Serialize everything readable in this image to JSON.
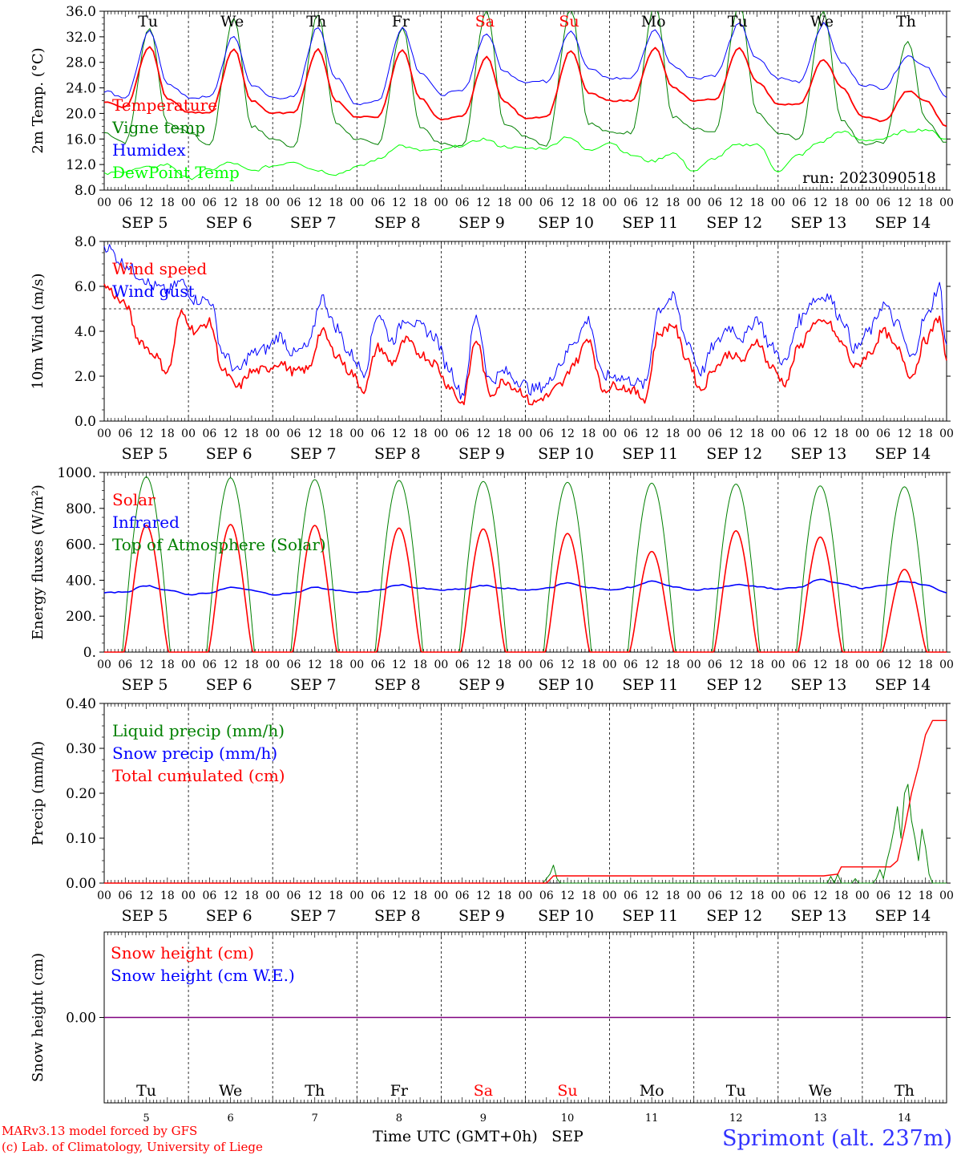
{
  "x_axis": {
    "hour_labels": [
      "00",
      "06",
      "12",
      "18"
    ],
    "end_label": "00",
    "date_labels": [
      "SEP  5",
      "SEP  6",
      "SEP  7",
      "SEP  8",
      "SEP  9",
      "SEP 10",
      "SEP 11",
      "SEP 12",
      "SEP 13",
      "SEP 14"
    ],
    "bottom_day_numbers": [
      "5",
      "6",
      "7",
      "8",
      "9",
      "10",
      "11",
      "12",
      "13",
      "14"
    ],
    "bottom_label": "Time UTC (GMT+0h)",
    "bottom_month": "SEP"
  },
  "day_names": [
    {
      "label": "Tu",
      "weekend": false
    },
    {
      "label": "We",
      "weekend": false
    },
    {
      "label": "Th",
      "weekend": false
    },
    {
      "label": "Fr",
      "weekend": false
    },
    {
      "label": "Sa",
      "weekend": true
    },
    {
      "label": "Su",
      "weekend": true
    },
    {
      "label": "Mo",
      "weekend": false
    },
    {
      "label": "Tu",
      "weekend": false
    },
    {
      "label": "We",
      "weekend": false
    },
    {
      "label": "Th",
      "weekend": false
    }
  ],
  "colors": {
    "red": "#ff0000",
    "green": "#008000",
    "blue": "#0000ff",
    "lightgreen": "#00ff00",
    "purple": "#800080",
    "weekend": "#ff0000"
  },
  "footer": {
    "credit_line1": "MARv3.13 model forced by GFS",
    "credit_line2": "(c) Lab. of Climatology, University of Liege",
    "station": "Sprimont (alt. 237m)"
  },
  "chart_data": [
    {
      "type": "line",
      "ylabel": "2m Temp. (°C)",
      "ylim": [
        8,
        36
      ],
      "yticks": [
        "8.0",
        "12.0",
        "16.0",
        "20.0",
        "24.0",
        "28.0",
        "32.0",
        "36.0"
      ],
      "annotation": "run: 2023090518",
      "x_unit": "hours since 2023-09-05 00 UTC",
      "series": [
        {
          "name": "Temperature",
          "color": "red",
          "width": 1.8,
          "x": [
            0,
            6,
            13,
            18,
            24,
            30,
            37,
            42,
            48,
            54,
            61,
            66,
            72,
            78,
            85,
            90,
            96,
            102,
            109,
            114,
            120,
            126,
            133,
            138,
            144,
            150,
            157,
            162,
            168,
            174,
            181,
            186,
            192,
            198,
            205,
            210,
            216,
            222,
            229,
            234,
            240
          ],
          "y": [
            21.8,
            21.0,
            30.5,
            22.4,
            20.2,
            20.0,
            30.0,
            22.0,
            20.0,
            20.2,
            30.0,
            22.0,
            19.4,
            19.5,
            30.0,
            22.4,
            19.0,
            19.5,
            28.8,
            21.8,
            19.3,
            19.5,
            29.8,
            23.2,
            22.0,
            22.0,
            30.2,
            24.0,
            22.0,
            22.2,
            30.2,
            25.0,
            21.5,
            21.4,
            28.4,
            24.2,
            19.5,
            18.8,
            23.5,
            22.0,
            18.0
          ]
        },
        {
          "name": "Vigne temp",
          "color": "green",
          "width": 1,
          "x": [
            0,
            6,
            13,
            18,
            24,
            30,
            37,
            42,
            48,
            54,
            61,
            66,
            72,
            78,
            85,
            90,
            96,
            102,
            109,
            114,
            120,
            126,
            133,
            138,
            144,
            150,
            157,
            162,
            168,
            174,
            181,
            186,
            192,
            198,
            205,
            210,
            216,
            222,
            229,
            234,
            240
          ],
          "y": [
            17.0,
            15.5,
            33.5,
            18.5,
            17.0,
            15.0,
            35.0,
            18.0,
            16.0,
            14.8,
            35.5,
            18.5,
            16.0,
            15.0,
            33.5,
            18.0,
            15.2,
            14.8,
            36.0,
            18.5,
            16.5,
            15.0,
            36.5,
            18.5,
            17.0,
            17.0,
            37.0,
            19.5,
            17.5,
            17.0,
            37.0,
            20.0,
            17.0,
            16.0,
            36.0,
            19.0,
            15.2,
            15.5,
            31.5,
            19.0,
            15.5
          ]
        },
        {
          "name": "Humidex",
          "color": "blue",
          "width": 1,
          "x": [
            0,
            6,
            13,
            18,
            24,
            30,
            37,
            42,
            48,
            54,
            61,
            66,
            72,
            78,
            85,
            90,
            96,
            102,
            109,
            114,
            120,
            126,
            133,
            138,
            144,
            150,
            157,
            162,
            168,
            174,
            181,
            186,
            192,
            198,
            205,
            210,
            216,
            222,
            229,
            234,
            240
          ],
          "y": [
            23.5,
            22.5,
            32.8,
            24.8,
            22.5,
            22.5,
            32.0,
            24.5,
            22.5,
            22.5,
            33.5,
            25.5,
            21.5,
            22.0,
            33.5,
            26.5,
            23.0,
            23.5,
            32.5,
            26.5,
            25.0,
            25.0,
            33.0,
            27.0,
            25.5,
            25.5,
            33.0,
            27.5,
            25.5,
            26.0,
            34.0,
            28.5,
            25.5,
            25.0,
            34.0,
            28.0,
            24.5,
            24.0,
            29.0,
            27.5,
            22.5
          ]
        },
        {
          "name": "DewPoint Temp",
          "color": "lightgreen",
          "width": 1,
          "x": [
            0,
            6,
            12,
            18,
            24,
            30,
            36,
            42,
            48,
            54,
            60,
            66,
            72,
            78,
            84,
            90,
            96,
            102,
            108,
            114,
            120,
            126,
            132,
            138,
            144,
            150,
            156,
            162,
            168,
            174,
            180,
            186,
            192,
            198,
            204,
            210,
            216,
            222,
            228,
            234,
            240
          ],
          "y": [
            10.5,
            11.0,
            11.5,
            12.0,
            9.8,
            11.2,
            12.3,
            11.0,
            11.8,
            12.5,
            11.2,
            10.5,
            11.6,
            12.8,
            15.0,
            14.2,
            14.2,
            15.0,
            16.0,
            14.8,
            14.5,
            14.6,
            16.4,
            14.2,
            15.5,
            13.5,
            12.5,
            13.8,
            11.0,
            13.0,
            15.0,
            15.2,
            11.0,
            13.5,
            15.5,
            17.2,
            15.8,
            16.0,
            17.2,
            17.5,
            16.0
          ]
        }
      ]
    },
    {
      "type": "line",
      "ylabel": "10m Wind (m/s)",
      "ylim": [
        0,
        8
      ],
      "yticks": [
        "0.0",
        "2.0",
        "4.0",
        "6.0",
        "8.0"
      ],
      "reference_line": 5,
      "x_unit": "hours since 2023-09-05 00 UTC",
      "series": [
        {
          "name": "Wind speed",
          "color": "red",
          "width": 1.6,
          "x": [
            0,
            6,
            10,
            14,
            18,
            22,
            26,
            30,
            34,
            38,
            42,
            46,
            50,
            54,
            58,
            62,
            66,
            70,
            74,
            78,
            82,
            86,
            90,
            94,
            98,
            102,
            106,
            110,
            114,
            118,
            122,
            126,
            130,
            134,
            138,
            142,
            146,
            150,
            154,
            158,
            162,
            166,
            170,
            174,
            178,
            182,
            186,
            190,
            194,
            198,
            202,
            206,
            210,
            214,
            218,
            222,
            226,
            230,
            234,
            238,
            240
          ],
          "y": [
            6.0,
            5.2,
            3.6,
            3.0,
            2.2,
            4.8,
            4.0,
            4.4,
            2.2,
            1.5,
            2.2,
            2.3,
            2.6,
            2.2,
            2.3,
            4.0,
            3.0,
            2.2,
            1.4,
            3.3,
            2.6,
            3.6,
            3.0,
            2.6,
            1.6,
            0.8,
            3.6,
            1.2,
            1.8,
            1.4,
            0.8,
            1.1,
            1.6,
            2.6,
            3.7,
            1.4,
            1.6,
            1.4,
            1.0,
            3.9,
            4.3,
            2.8,
            1.4,
            2.4,
            3.0,
            2.7,
            3.6,
            2.4,
            1.7,
            3.3,
            4.3,
            4.4,
            3.5,
            2.4,
            3.0,
            4.0,
            3.2,
            2.0,
            3.6,
            4.6,
            2.7
          ]
        },
        {
          "name": "Wind gust",
          "color": "blue",
          "width": 1,
          "x": [
            0,
            6,
            10,
            14,
            18,
            22,
            26,
            30,
            34,
            38,
            42,
            46,
            50,
            54,
            58,
            62,
            66,
            70,
            74,
            78,
            82,
            86,
            90,
            94,
            98,
            102,
            106,
            110,
            114,
            118,
            122,
            126,
            130,
            134,
            138,
            142,
            146,
            150,
            154,
            158,
            162,
            166,
            170,
            174,
            178,
            182,
            186,
            190,
            194,
            198,
            202,
            206,
            210,
            214,
            218,
            222,
            226,
            230,
            234,
            238,
            240
          ],
          "y": [
            7.8,
            7.0,
            6.5,
            6.0,
            5.8,
            6.2,
            5.4,
            5.4,
            3.0,
            2.2,
            3.0,
            3.2,
            3.8,
            3.0,
            3.3,
            5.5,
            4.2,
            3.0,
            2.2,
            4.8,
            3.6,
            4.6,
            4.2,
            3.8,
            2.4,
            1.2,
            4.6,
            1.8,
            2.2,
            1.8,
            1.4,
            1.6,
            2.6,
            3.6,
            4.5,
            2.0,
            2.0,
            1.8,
            1.6,
            5.0,
            5.5,
            3.6,
            2.2,
            3.4,
            4.2,
            3.7,
            4.6,
            3.3,
            2.6,
            4.5,
            5.4,
            5.6,
            4.6,
            3.2,
            4.0,
            5.2,
            4.3,
            2.8,
            4.6,
            6.0,
            3.4
          ]
        }
      ]
    },
    {
      "type": "line",
      "ylabel": "Energy fluxes (W/m²)",
      "ylim": [
        0,
        1000
      ],
      "yticks": [
        "0.",
        "200.",
        "400.",
        "600.",
        "800.",
        "1000."
      ],
      "x_unit": "hours since 2023-09-05 00 UTC",
      "series": [
        {
          "name": "Solar",
          "color": "red",
          "peaks": [
            705,
            710,
            705,
            690,
            685,
            660,
            560,
            675,
            640,
            460
          ]
        },
        {
          "name": "Infrared",
          "color": "blue",
          "width": 1.6,
          "x": [
            0,
            6,
            12,
            18,
            24,
            30,
            36,
            42,
            48,
            54,
            60,
            66,
            72,
            78,
            84,
            90,
            96,
            102,
            108,
            114,
            120,
            126,
            132,
            138,
            144,
            150,
            156,
            162,
            168,
            174,
            180,
            186,
            192,
            198,
            204,
            210,
            216,
            222,
            228,
            234,
            240
          ],
          "y": [
            330,
            335,
            370,
            345,
            320,
            330,
            360,
            345,
            320,
            330,
            360,
            345,
            330,
            345,
            375,
            355,
            345,
            350,
            370,
            355,
            345,
            355,
            385,
            360,
            345,
            360,
            395,
            365,
            345,
            355,
            375,
            365,
            350,
            360,
            405,
            380,
            355,
            370,
            395,
            375,
            330
          ]
        },
        {
          "name": "Top of Atmosphere (Solar)",
          "color": "green",
          "peaks": [
            975,
            970,
            960,
            955,
            950,
            945,
            940,
            935,
            925,
            920
          ]
        }
      ]
    },
    {
      "type": "line",
      "ylabel": "Precip (mm/h)",
      "ylim": [
        0,
        0.4
      ],
      "yticks": [
        "0.00",
        "0.10",
        "0.20",
        "0.30",
        "0.40"
      ],
      "x_unit": "hours since 2023-09-05 00 UTC",
      "series": [
        {
          "name": "Liquid precip (mm/h)",
          "color": "green",
          "width": 1,
          "x": [
            0,
            125,
            127,
            128,
            129,
            130,
            135,
            206,
            207,
            208,
            209,
            210,
            213,
            214,
            215,
            216,
            219,
            220,
            221,
            222,
            223,
            224,
            225,
            226,
            227,
            228,
            229,
            230,
            231,
            232,
            233,
            234,
            235,
            236,
            240
          ],
          "y": [
            0,
            0,
            0.02,
            0.04,
            0.01,
            0,
            0,
            0,
            0.015,
            0,
            0.02,
            0,
            0,
            0.01,
            0,
            0,
            0,
            0.01,
            0.03,
            0.01,
            0.05,
            0.08,
            0.12,
            0.17,
            0.1,
            0.2,
            0.22,
            0.14,
            0.1,
            0.05,
            0.12,
            0.08,
            0.02,
            0,
            0
          ]
        },
        {
          "name": "Snow precip (mm/h)",
          "color": "blue",
          "values": []
        },
        {
          "name": "Total cumulated (cm)",
          "color": "red",
          "width": 1.4,
          "x": [
            0,
            126,
            127.5,
            128,
            205,
            209,
            210,
            224,
            226,
            228,
            230,
            232,
            234,
            236,
            240
          ],
          "y": [
            0,
            0,
            0.012,
            0.016,
            0.016,
            0.02,
            0.036,
            0.036,
            0.05,
            0.12,
            0.2,
            0.26,
            0.33,
            0.362,
            0.362
          ]
        }
      ]
    },
    {
      "type": "line",
      "ylabel": "Snow height (cm)",
      "ylim": [
        -1,
        1
      ],
      "yticks": [
        "0.00"
      ],
      "x_unit": "hours since 2023-09-05 00 UTC",
      "series": [
        {
          "name": "Snow height (cm)",
          "color": "red",
          "x": [
            0,
            240
          ],
          "y": [
            0,
            0
          ]
        },
        {
          "name": "Snow height (cm W.E.)",
          "color": "blue",
          "x": [
            0,
            240
          ],
          "y": [
            0,
            0
          ]
        }
      ]
    }
  ]
}
